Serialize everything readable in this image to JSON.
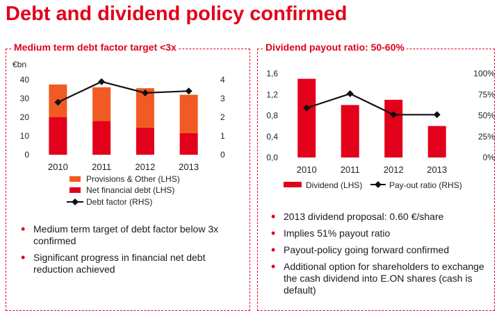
{
  "page": {
    "title": "Debt and dividend policy confirmed"
  },
  "left": {
    "title": "Medium term debt factor target <3x",
    "bullets": [
      "Medium term target of debt factor below 3x confirmed",
      "Significant progress in financial net debt reduction achieved"
    ]
  },
  "right": {
    "title": "Dividend payout ratio: 50-60%",
    "bullets": [
      "2013 dividend proposal: 0.60 €/share",
      "Implies 51% payout ratio",
      "Payout-policy going forward confirmed",
      "Additional option for shareholders to exchange the cash dividend into E.ON shares (cash is default)"
    ]
  },
  "chart_data": [
    {
      "type": "bar",
      "stacked": true,
      "categories": [
        "2010",
        "2011",
        "2012",
        "2013"
      ],
      "ylabel": "€bn",
      "ylim": [
        0,
        40
      ],
      "yticks": [
        "0",
        "10",
        "20",
        "30",
        "40"
      ],
      "y2lim": [
        0,
        4
      ],
      "y2ticks": [
        "0",
        "1",
        "2",
        "3",
        "4"
      ],
      "series": [
        {
          "name": "Net financial debt (LHS)",
          "values": [
            20,
            18,
            14.5,
            11.5
          ],
          "color": "#e2001a"
        },
        {
          "name": "Provisions & Other (LHS)",
          "values": [
            17.5,
            18,
            21,
            20.5
          ],
          "color": "#f15a22"
        }
      ],
      "line_series": {
        "name": "Debt factor (RHS)",
        "values": [
          2.8,
          3.9,
          3.3,
          3.4
        ],
        "axis": "right",
        "color": "#111111"
      },
      "legend": [
        "Provisions & Other (LHS)",
        "Net financial debt (LHS)",
        "Debt factor (RHS)"
      ],
      "legend_placement": "bottom",
      "grid": false
    },
    {
      "type": "bar",
      "categories": [
        "2010",
        "2011",
        "2012",
        "2013"
      ],
      "ylim": [
        0,
        1.6
      ],
      "yticks": [
        "0,0",
        "0,4",
        "0,8",
        "1,2",
        "1,6"
      ],
      "y2lim": [
        0,
        100
      ],
      "y2ticks": [
        "0%",
        "25%",
        "50%",
        "75%",
        "100%"
      ],
      "series": [
        {
          "name": "Dividend (LHS)",
          "values": [
            1.5,
            1.0,
            1.1,
            0.6
          ],
          "color": "#e2001a"
        }
      ],
      "line_series": {
        "name": "Pay-out ratio (RHS)",
        "values": [
          59,
          76,
          51,
          51
        ],
        "axis": "right",
        "color": "#111111"
      },
      "legend": [
        "Dividend (LHS)",
        "Pay-out ratio (RHS)"
      ],
      "legend_placement": "bottom",
      "grid": false
    }
  ]
}
